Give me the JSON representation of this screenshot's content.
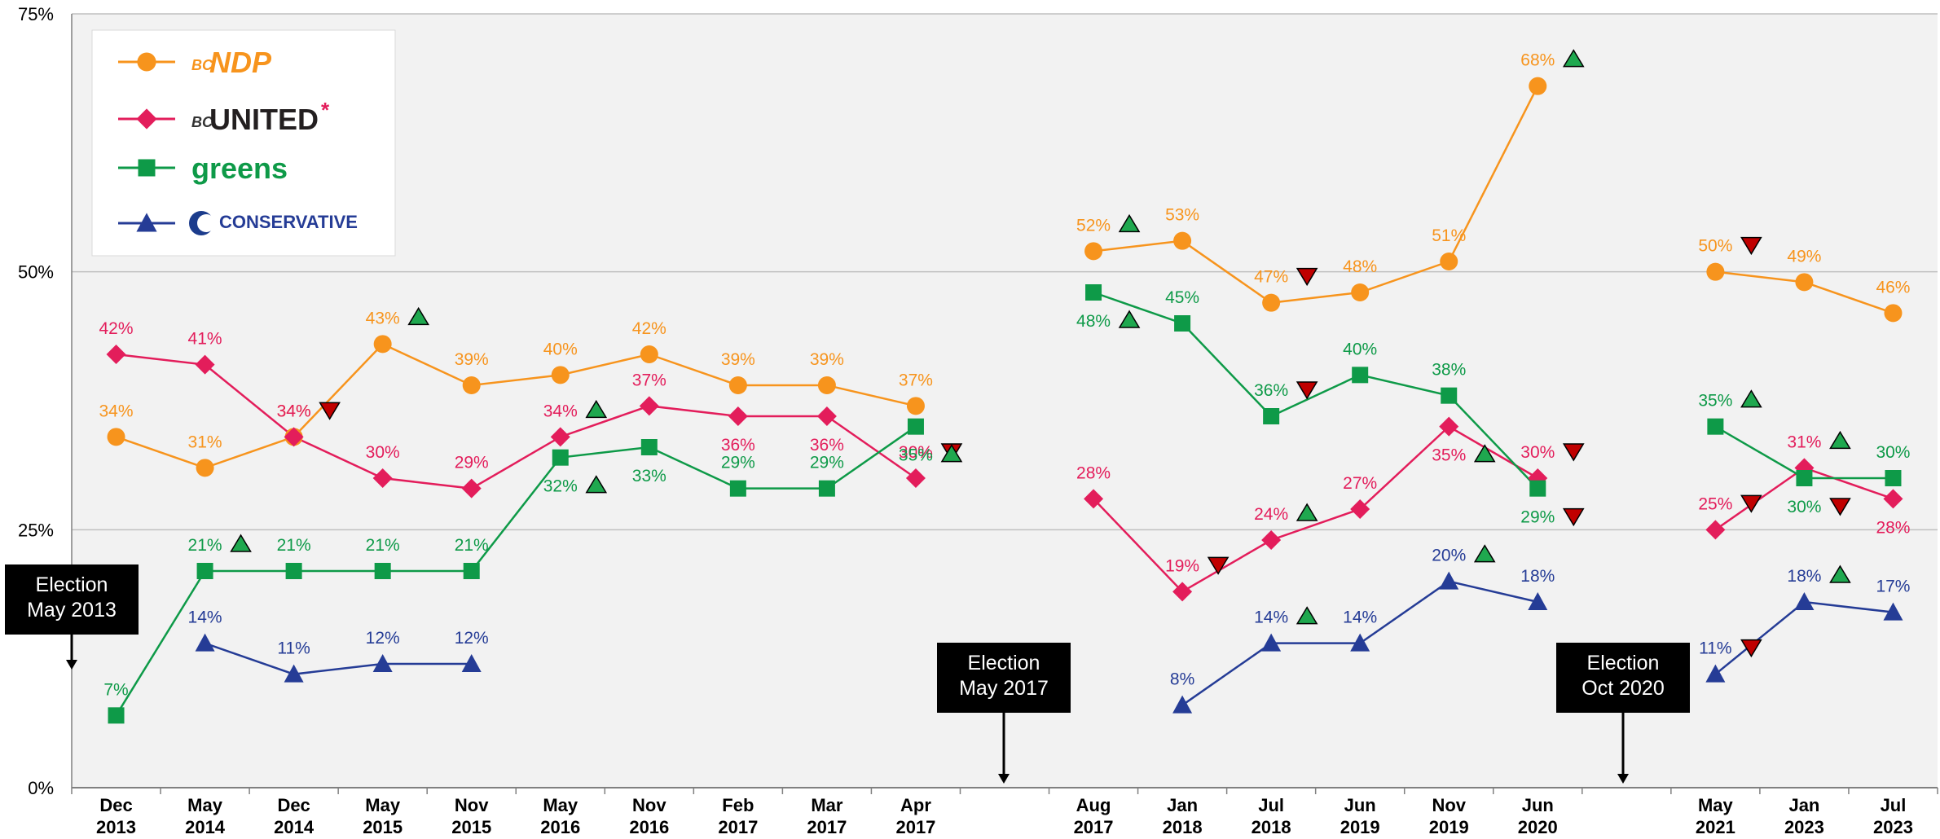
{
  "chart_data": {
    "type": "line",
    "ylim": [
      0,
      75
    ],
    "y_ticks": [
      "0%",
      "25%",
      "50%",
      "75%"
    ],
    "grid": true,
    "legend_position": "top-left",
    "categories": [
      [
        "Dec",
        "2013"
      ],
      [
        "May",
        "2014"
      ],
      [
        "Dec",
        "2014"
      ],
      [
        "May",
        "2015"
      ],
      [
        "Nov",
        "2015"
      ],
      [
        "May",
        "2016"
      ],
      [
        "Nov",
        "2016"
      ],
      [
        "Feb",
        "2017"
      ],
      [
        "Mar",
        "2017"
      ],
      [
        "Apr",
        "2017"
      ],
      [
        "",
        ""
      ],
      [
        "Aug",
        "2017"
      ],
      [
        "Jan",
        "2018"
      ],
      [
        "Jul",
        "2018"
      ],
      [
        "Jun",
        "2019"
      ],
      [
        "Nov",
        "2019"
      ],
      [
        "Jun",
        "2020"
      ],
      [
        "",
        ""
      ],
      [
        "May",
        "2021"
      ],
      [
        "Jan",
        "2023"
      ],
      [
        "Jul",
        "2023"
      ]
    ],
    "series": [
      {
        "name": "BC NDP",
        "color": "#F7941D",
        "marker": "circle",
        "values": [
          34,
          31,
          34,
          43,
          39,
          40,
          42,
          39,
          39,
          37,
          null,
          52,
          53,
          47,
          48,
          51,
          68,
          null,
          50,
          49,
          46
        ],
        "labels": [
          "34%",
          "31%",
          "34%",
          "43%",
          "39%",
          "40%",
          "42%",
          "39%",
          "39%",
          "37%",
          null,
          "52%",
          "53%",
          "47%",
          "48%",
          "51%",
          "68%",
          null,
          "50%",
          "49%",
          "46%"
        ],
        "trend": [
          null,
          null,
          null,
          "up",
          null,
          null,
          null,
          null,
          null,
          null,
          null,
          "up",
          null,
          "down",
          null,
          null,
          "up",
          null,
          "down",
          null,
          null
        ]
      },
      {
        "name": "BC United",
        "color": "#E31D5B",
        "marker": "diamond",
        "values": [
          42,
          41,
          34,
          30,
          29,
          34,
          37,
          36,
          36,
          30,
          null,
          28,
          19,
          24,
          27,
          35,
          30,
          null,
          25,
          31,
          28
        ],
        "labels": [
          "42%",
          "41%",
          "34%",
          "30%",
          "29%",
          "34%",
          "37%",
          "36%",
          "36%",
          "30%",
          null,
          "28%",
          "19%",
          "24%",
          "27%",
          "35%",
          "30%",
          null,
          "25%",
          "31%",
          "28%"
        ],
        "trend": [
          null,
          null,
          "down",
          null,
          null,
          "up",
          null,
          null,
          null,
          "down",
          null,
          null,
          "down",
          "up",
          null,
          "up",
          "down",
          null,
          "down",
          "up",
          null
        ]
      },
      {
        "name": "Greens",
        "color": "#0E9A48",
        "marker": "square",
        "values": [
          7,
          21,
          21,
          21,
          21,
          32,
          33,
          29,
          29,
          35,
          null,
          48,
          45,
          36,
          40,
          38,
          29,
          null,
          35,
          30,
          30
        ],
        "labels": [
          "7%",
          "21%",
          "21%",
          "21%",
          "21%",
          "32%",
          "33%",
          "29%",
          "29%",
          "35%",
          null,
          "48%",
          "45%",
          "36%",
          "40%",
          "38%",
          "29%",
          null,
          "35%",
          "30%",
          "30%"
        ],
        "trend": [
          null,
          "up",
          null,
          null,
          null,
          "up",
          null,
          null,
          null,
          "up",
          null,
          "up",
          null,
          "down",
          null,
          null,
          "down",
          null,
          "up",
          "down",
          null
        ]
      },
      {
        "name": "Conservative",
        "color": "#253C96",
        "marker": "triangle",
        "values": [
          null,
          14,
          11,
          12,
          12,
          null,
          null,
          null,
          null,
          null,
          null,
          null,
          8,
          14,
          14,
          20,
          18,
          null,
          11,
          18,
          17
        ],
        "labels": [
          null,
          "14%",
          "11%",
          "12%",
          "12%",
          null,
          null,
          null,
          null,
          null,
          null,
          null,
          "8%",
          "14%",
          "14%",
          "20%",
          "18%",
          null,
          "11%",
          "18%",
          "17%"
        ],
        "trend": [
          null,
          null,
          null,
          null,
          null,
          null,
          null,
          null,
          null,
          null,
          null,
          null,
          null,
          "up",
          null,
          "up",
          null,
          null,
          "down",
          "up",
          null
        ]
      }
    ],
    "annotations": [
      {
        "name": "election-2013",
        "lines": [
          "Election",
          "May 2013"
        ]
      },
      {
        "name": "election-2017",
        "lines": [
          "Election",
          "May 2017"
        ]
      },
      {
        "name": "election-2020",
        "lines": [
          "Election",
          "Oct 2020"
        ]
      }
    ],
    "legend": {
      "entries": [
        {
          "logo_text": "NDP",
          "logo_prefix": "BC",
          "asterisk": ""
        },
        {
          "logo_text": "UNITED",
          "logo_prefix": "BC",
          "asterisk": "*"
        },
        {
          "logo_text": "greens",
          "logo_prefix": "",
          "asterisk": ""
        },
        {
          "logo_text": "CONSERVATIVE",
          "logo_prefix": "",
          "asterisk": ""
        }
      ]
    },
    "trend_colors": {
      "up": "#1FA84F",
      "down": "#C00000"
    }
  }
}
